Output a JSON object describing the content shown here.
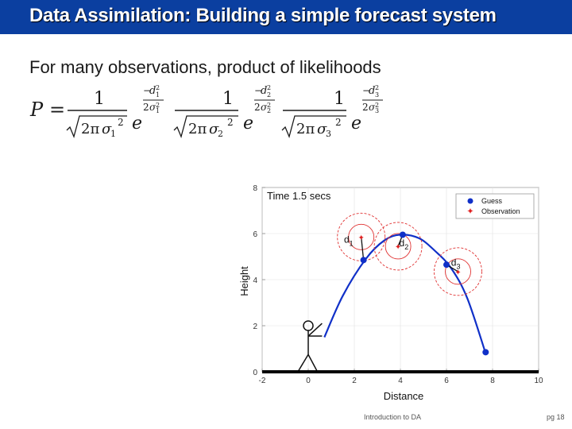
{
  "slide": {
    "title": "Data Assimilation: Building a simple forecast system",
    "bullet": "For many observations, product of likelihoods",
    "footer_center": "Introduction to DA",
    "footer_right": "pg 18"
  },
  "formula": {
    "lhs": "P",
    "equals": "=",
    "terms": [
      {
        "numerator": "1",
        "sigma": "σ1",
        "d": "d1"
      },
      {
        "numerator": "1",
        "sigma": "σ2",
        "d": "d2"
      },
      {
        "numerator": "1",
        "sigma": "σ3",
        "d": "d3"
      }
    ]
  },
  "chart_data": {
    "type": "scatter",
    "title": "Time 1.5 secs",
    "xlabel": "Distance",
    "ylabel": "Height",
    "xlim": [
      -2,
      10
    ],
    "ylim": [
      0,
      8
    ],
    "x_ticks": [
      -2,
      0,
      2,
      4,
      6,
      8,
      10
    ],
    "y_ticks": [
      0,
      2,
      4,
      6,
      8
    ],
    "legend_position": "top-right",
    "legend": [
      "Guess",
      "Observation"
    ],
    "colors": {
      "guess": "#1030c8",
      "observation": "#e02020",
      "rings": "#e03030"
    },
    "trajectory": [
      [
        0.7,
        1.5
      ],
      [
        1.5,
        3.3
      ],
      [
        2.5,
        4.9
      ],
      [
        3.3,
        5.7
      ],
      [
        4.0,
        5.95
      ],
      [
        4.8,
        5.8
      ],
      [
        5.5,
        5.25
      ],
      [
        6.2,
        4.5
      ],
      [
        6.9,
        3.2
      ],
      [
        7.7,
        0.8
      ]
    ],
    "guess_points": [
      [
        2.4,
        4.85
      ],
      [
        4.1,
        5.95
      ],
      [
        6.0,
        4.65
      ],
      [
        7.7,
        0.85
      ]
    ],
    "observation_points": [
      [
        2.3,
        5.85
      ],
      [
        3.9,
        5.45
      ],
      [
        6.5,
        4.35
      ]
    ],
    "distance_labels": [
      {
        "text": "d1",
        "x": 1.55,
        "y": 5.6
      },
      {
        "text": "d2",
        "x": 3.95,
        "y": 5.45
      },
      {
        "text": "d3",
        "x": 6.2,
        "y": 4.6
      }
    ]
  }
}
